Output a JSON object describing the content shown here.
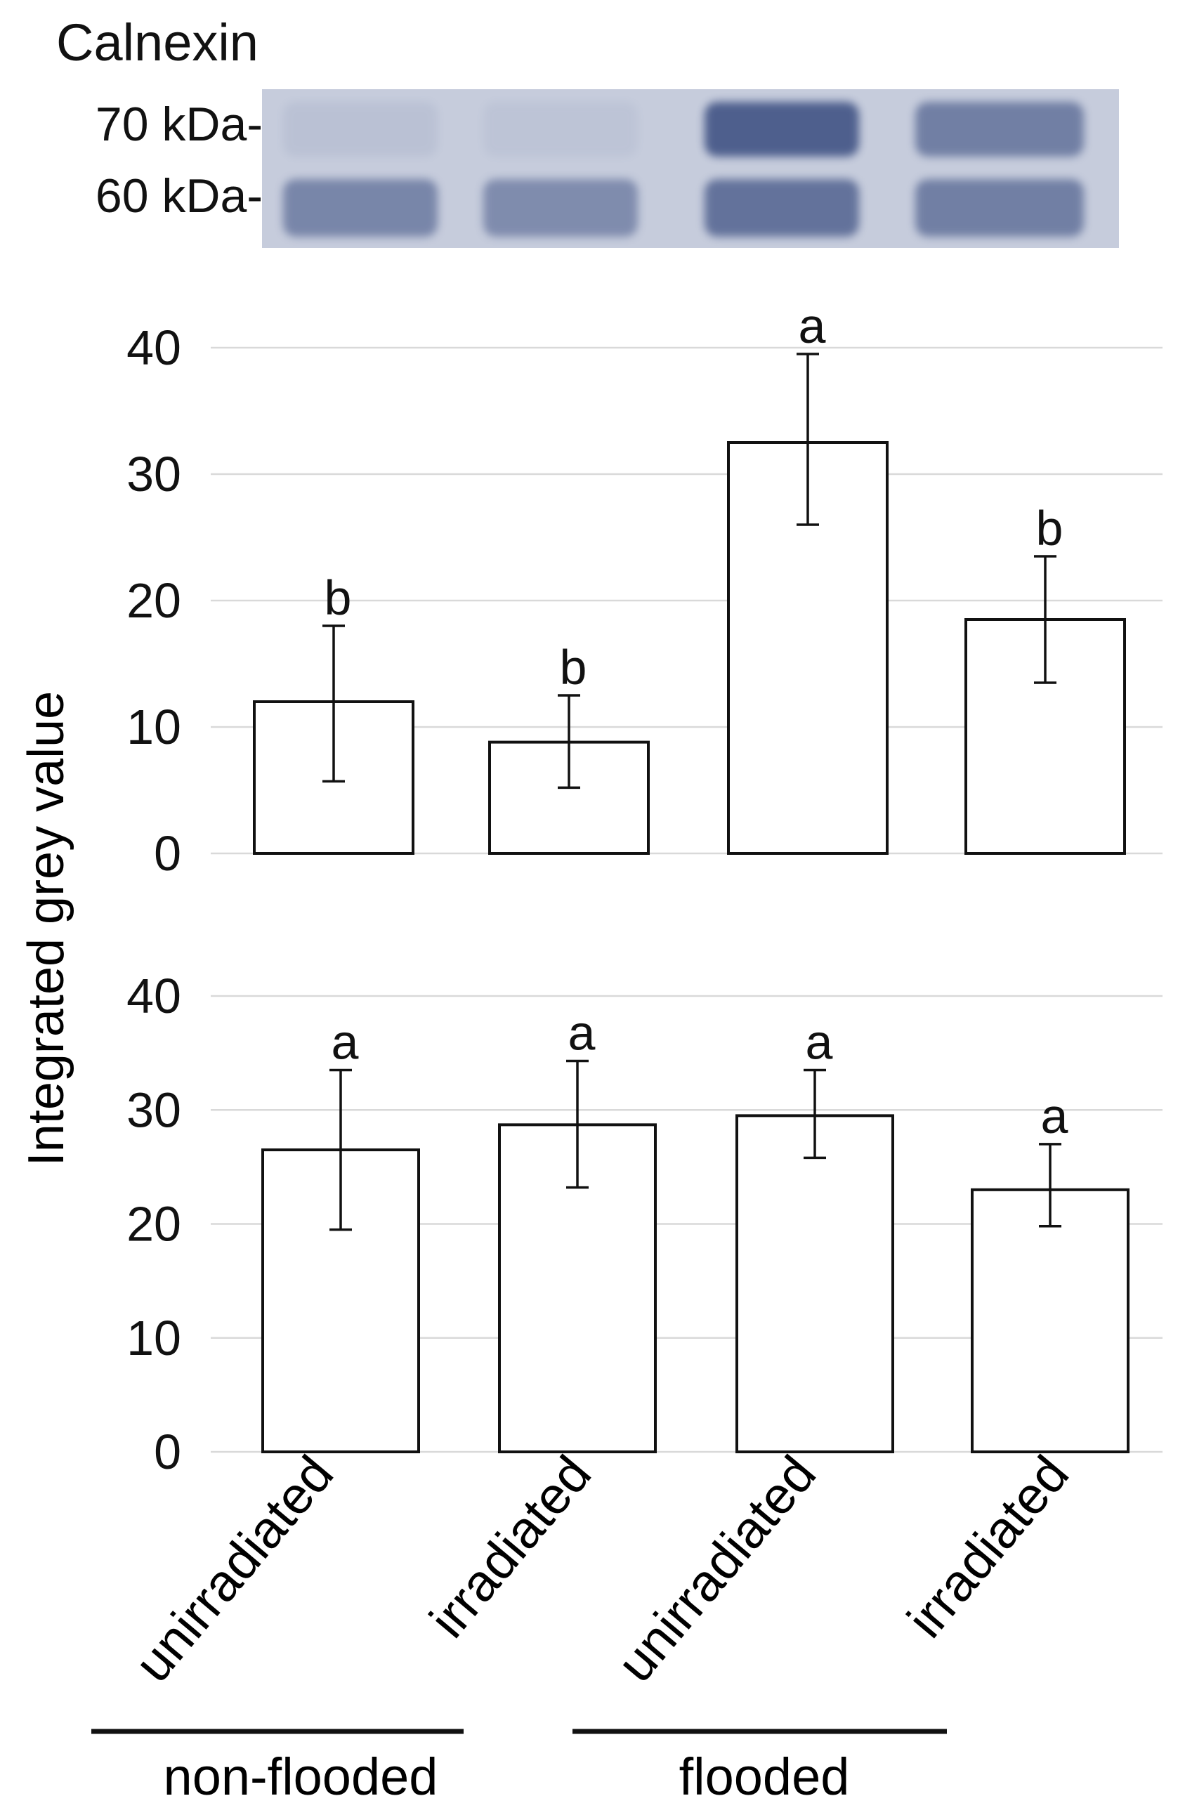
{
  "blot": {
    "protein": "Calnexin",
    "markers": [
      "70 kDa-",
      "60 kDa-"
    ],
    "lanes": [
      {
        "upper_intensity": 0.08,
        "lower_intensity": 0.55
      },
      {
        "upper_intensity": 0.06,
        "lower_intensity": 0.5
      },
      {
        "upper_intensity": 0.85,
        "lower_intensity": 0.7
      },
      {
        "upper_intensity": 0.6,
        "lower_intensity": 0.6
      }
    ],
    "colors": {
      "membrane": "#c6ccdc",
      "band": "#3a4d80"
    }
  },
  "chart_data": [
    {
      "type": "bar",
      "ylabel": "Integrated grey value",
      "ylim": [
        0,
        40
      ],
      "yticks": [
        0,
        10,
        20,
        30,
        40
      ],
      "categories": [
        "unirradiated",
        "irradiated",
        "unirradiated",
        "irradiated"
      ],
      "values": [
        12,
        8.8,
        32.5,
        18.5
      ],
      "error_low": [
        5.7,
        5.2,
        26,
        13.5
      ],
      "error_high": [
        18,
        12.5,
        39.5,
        23.5
      ],
      "significance": [
        "b",
        "b",
        "a",
        "b"
      ],
      "grid": true
    },
    {
      "type": "bar",
      "ylabel": "Integrated grey value",
      "ylim": [
        0,
        40
      ],
      "yticks": [
        0,
        10,
        20,
        30,
        40
      ],
      "categories": [
        "unirradiated",
        "irradiated",
        "unirradiated",
        "irradiated"
      ],
      "values": [
        26.5,
        28.7,
        29.5,
        23
      ],
      "error_low": [
        19.5,
        23.2,
        25.8,
        19.8
      ],
      "error_high": [
        33.5,
        34.3,
        33.5,
        27
      ],
      "significance": [
        "a",
        "a",
        "a",
        "a"
      ],
      "grid": true
    }
  ],
  "axis": {
    "ylabel": "Integrated grey value",
    "categories": [
      "unirradiated",
      "irradiated",
      "unirradiated",
      "irradiated"
    ],
    "groups": [
      "non-flooded",
      "flooded"
    ]
  },
  "colors": {
    "bar_fill": "#ffffff",
    "bar_stroke": "#111111",
    "grid": "#d9d9d9",
    "text": "#111111"
  }
}
